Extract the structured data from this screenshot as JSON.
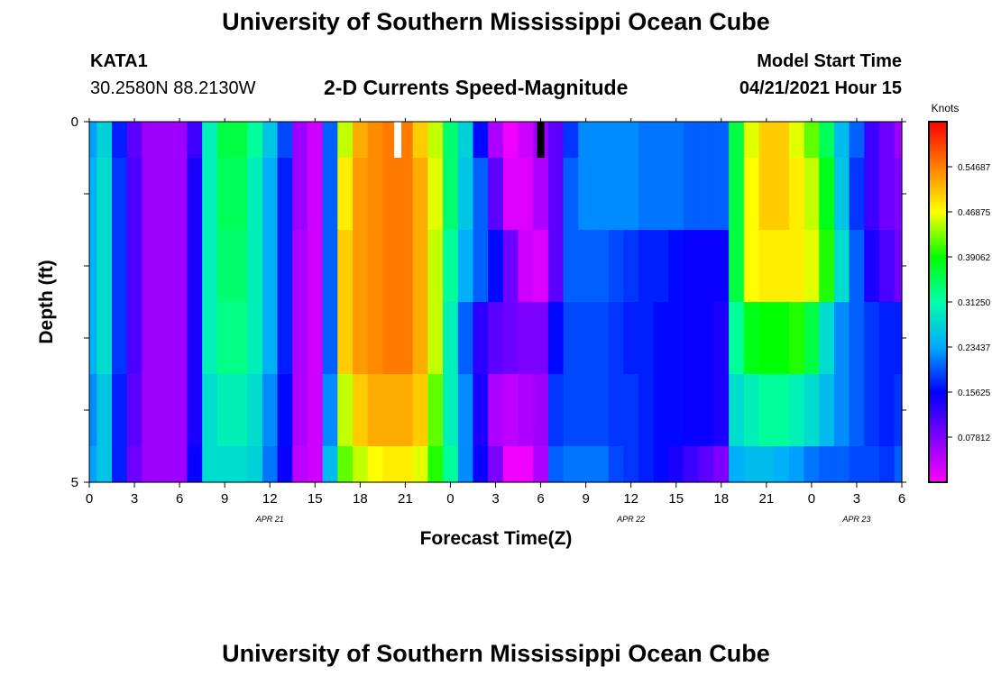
{
  "header": {
    "title": "University of Southern Mississippi Ocean Cube",
    "station": "KATA1",
    "coords": "30.2580N  88.2130W",
    "subtitle": "2-D Currents Speed-Magnitude",
    "model_label": "Model Start Time",
    "model_time": "04/21/2021 Hour 15"
  },
  "footer": {
    "title": "University of Southern Mississippi Ocean Cube"
  },
  "chart_data": {
    "type": "heatmap",
    "title": "2-D Currents Speed-Magnitude",
    "xlabel": "Forecast Time(Z)",
    "ylabel": "Depth (ft)",
    "x_tick_labels": [
      "0",
      "3",
      "6",
      "9",
      "12",
      "15",
      "18",
      "21",
      "0",
      "3",
      "6",
      "9",
      "12",
      "15",
      "18",
      "21",
      "0",
      "3",
      "6"
    ],
    "x_hours": [
      0,
      3,
      6,
      9,
      12,
      15,
      18,
      21,
      24,
      27,
      30,
      33,
      36,
      39,
      42,
      45,
      48,
      51,
      54
    ],
    "date_labels": [
      {
        "label": "APR  21",
        "hour": 12
      },
      {
        "label": "APR  22",
        "hour": 36
      },
      {
        "label": "APR  23",
        "hour": 51
      }
    ],
    "xlim": [
      0,
      54
    ],
    "ylim": [
      0,
      5
    ],
    "y_tick_labels": [
      "0",
      "5"
    ],
    "colorbar": {
      "title": "Knots",
      "min": 0.0,
      "max": 0.625,
      "tick_values": [
        0.078125,
        0.15625,
        0.234375,
        0.3125,
        0.390625,
        0.46875,
        0.546875
      ],
      "tick_labels": [
        "0.07812",
        "0.15625",
        "0.23437",
        "0.31250",
        "0.39062",
        "0.46875",
        "0.54687"
      ]
    },
    "markers": [
      {
        "hour": 20.5,
        "color": "#ffffff"
      },
      {
        "hour": 30.0,
        "color": "#000000"
      }
    ],
    "depth_layers": [
      "0-0.5",
      "0.5-1.5",
      "1.5-2.5",
      "2.5-3.5",
      "3.5-4.5",
      "4.5-5"
    ],
    "time_hours": [
      0,
      1,
      2,
      3,
      4,
      5,
      6,
      7,
      8,
      9,
      10,
      11,
      12,
      13,
      14,
      15,
      16,
      17,
      18,
      19,
      20,
      21,
      22,
      23,
      24,
      25,
      26,
      27,
      28,
      29,
      30,
      31,
      32,
      33,
      34,
      35,
      36,
      37,
      38,
      39,
      40,
      41,
      42,
      43,
      44,
      45,
      46,
      47,
      48,
      49,
      50,
      51,
      52,
      53,
      54
    ],
    "speed_knots": [
      [
        0.23,
        0.27,
        0.17,
        0.1,
        0.06,
        0.06,
        0.06,
        0.12,
        0.3,
        0.36,
        0.36,
        0.32,
        0.26,
        0.19,
        0.06,
        0.03,
        0.2,
        0.45,
        0.52,
        0.54,
        0.55,
        0.55,
        0.5,
        0.45,
        0.34,
        0.27,
        0.16,
        0.05,
        0.01,
        0.03,
        0.06,
        0.1,
        0.18,
        0.22,
        0.22,
        0.22,
        0.22,
        0.21,
        0.21,
        0.21,
        0.2,
        0.2,
        0.2,
        0.36,
        0.46,
        0.5,
        0.5,
        0.46,
        0.42,
        0.35,
        0.25,
        0.2,
        0.12,
        0.09,
        0.06
      ],
      [
        0.24,
        0.28,
        0.18,
        0.11,
        0.06,
        0.06,
        0.06,
        0.14,
        0.3,
        0.35,
        0.35,
        0.3,
        0.24,
        0.17,
        0.06,
        0.03,
        0.2,
        0.48,
        0.53,
        0.54,
        0.55,
        0.55,
        0.52,
        0.46,
        0.34,
        0.26,
        0.2,
        0.1,
        0.02,
        0.02,
        0.05,
        0.1,
        0.2,
        0.22,
        0.22,
        0.22,
        0.22,
        0.21,
        0.21,
        0.21,
        0.2,
        0.2,
        0.2,
        0.36,
        0.47,
        0.5,
        0.5,
        0.48,
        0.45,
        0.38,
        0.26,
        0.18,
        0.12,
        0.09,
        0.08
      ],
      [
        0.24,
        0.28,
        0.18,
        0.11,
        0.06,
        0.06,
        0.06,
        0.14,
        0.3,
        0.34,
        0.34,
        0.3,
        0.24,
        0.17,
        0.05,
        0.03,
        0.2,
        0.5,
        0.53,
        0.54,
        0.55,
        0.55,
        0.52,
        0.45,
        0.32,
        0.24,
        0.2,
        0.16,
        0.09,
        0.03,
        0.02,
        0.1,
        0.2,
        0.2,
        0.2,
        0.19,
        0.18,
        0.17,
        0.17,
        0.16,
        0.15,
        0.15,
        0.15,
        0.36,
        0.47,
        0.48,
        0.48,
        0.48,
        0.46,
        0.4,
        0.28,
        0.2,
        0.14,
        0.11,
        0.09
      ],
      [
        0.24,
        0.28,
        0.18,
        0.11,
        0.06,
        0.06,
        0.06,
        0.14,
        0.3,
        0.33,
        0.33,
        0.3,
        0.24,
        0.17,
        0.05,
        0.03,
        0.2,
        0.5,
        0.53,
        0.54,
        0.55,
        0.55,
        0.52,
        0.45,
        0.3,
        0.2,
        0.13,
        0.1,
        0.09,
        0.08,
        0.08,
        0.16,
        0.19,
        0.19,
        0.19,
        0.18,
        0.17,
        0.17,
        0.16,
        0.16,
        0.15,
        0.15,
        0.14,
        0.32,
        0.38,
        0.39,
        0.39,
        0.4,
        0.36,
        0.28,
        0.22,
        0.2,
        0.18,
        0.17,
        0.17
      ],
      [
        0.22,
        0.26,
        0.17,
        0.1,
        0.06,
        0.06,
        0.06,
        0.14,
        0.28,
        0.3,
        0.3,
        0.28,
        0.22,
        0.16,
        0.05,
        0.03,
        0.22,
        0.45,
        0.5,
        0.52,
        0.52,
        0.52,
        0.5,
        0.42,
        0.3,
        0.22,
        0.14,
        0.05,
        0.04,
        0.05,
        0.06,
        0.18,
        0.19,
        0.19,
        0.19,
        0.18,
        0.18,
        0.17,
        0.16,
        0.16,
        0.15,
        0.15,
        0.14,
        0.28,
        0.3,
        0.32,
        0.32,
        0.3,
        0.28,
        0.25,
        0.22,
        0.2,
        0.18,
        0.17,
        0.18
      ],
      [
        0.23,
        0.26,
        0.17,
        0.09,
        0.06,
        0.06,
        0.06,
        0.15,
        0.28,
        0.28,
        0.28,
        0.27,
        0.21,
        0.15,
        0.04,
        0.03,
        0.25,
        0.42,
        0.45,
        0.47,
        0.48,
        0.48,
        0.46,
        0.4,
        0.32,
        0.22,
        0.15,
        0.08,
        0.01,
        0.01,
        0.05,
        0.2,
        0.21,
        0.21,
        0.21,
        0.19,
        0.18,
        0.17,
        0.16,
        0.14,
        0.12,
        0.1,
        0.08,
        0.24,
        0.25,
        0.25,
        0.24,
        0.23,
        0.21,
        0.2,
        0.2,
        0.19,
        0.19,
        0.18,
        0.2
      ]
    ]
  }
}
